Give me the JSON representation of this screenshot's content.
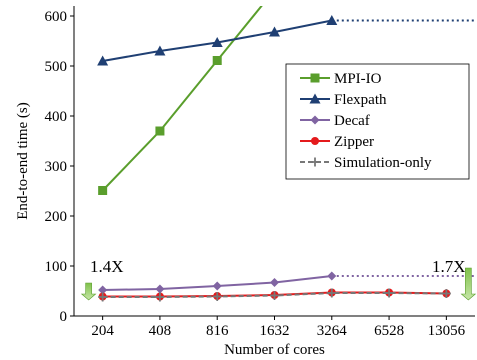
{
  "chart_data": {
    "type": "line",
    "title": "",
    "xlabel": "Number of cores",
    "ylabel": "End-to-end time (s)",
    "categories": [
      "204",
      "408",
      "816",
      "1632",
      "3264",
      "6528",
      "13056"
    ],
    "ylim": [
      0,
      620
    ],
    "yticks": [
      0,
      100,
      200,
      300,
      400,
      500,
      600
    ],
    "grid": false,
    "legend_position": "middle-right",
    "series": [
      {
        "name": "MPI-IO",
        "color": "#5a9e2c",
        "marker": "square",
        "values": [
          251,
          370,
          511,
          null,
          null,
          null,
          null
        ],
        "dotted_values": [],
        "extends_above": true
      },
      {
        "name": "Flexpath",
        "color": "#1f3f73",
        "marker": "triangle",
        "values": [
          510,
          530,
          547,
          568,
          591,
          null,
          null
        ],
        "dotted_values": [
          591,
          591,
          591
        ]
      },
      {
        "name": "Decaf",
        "color": "#8064a2",
        "marker": "diamond",
        "values": [
          52,
          54,
          60,
          67,
          80,
          null,
          null
        ],
        "dotted_values": [
          80,
          80,
          80
        ]
      },
      {
        "name": "Zipper",
        "color": "#e41a1c",
        "marker": "circle",
        "values": [
          39,
          39,
          40,
          42,
          47,
          47,
          45
        ],
        "dotted_values": []
      },
      {
        "name": "Simulation-only",
        "color": "#777777",
        "marker": "plus",
        "values": [
          38,
          38,
          39,
          41,
          46,
          46,
          45
        ],
        "dotted_values": [],
        "dashed": true
      }
    ],
    "annotations": [
      {
        "text": "1.4X",
        "category": "204"
      },
      {
        "text": "1.7X",
        "category": "13056"
      }
    ]
  }
}
